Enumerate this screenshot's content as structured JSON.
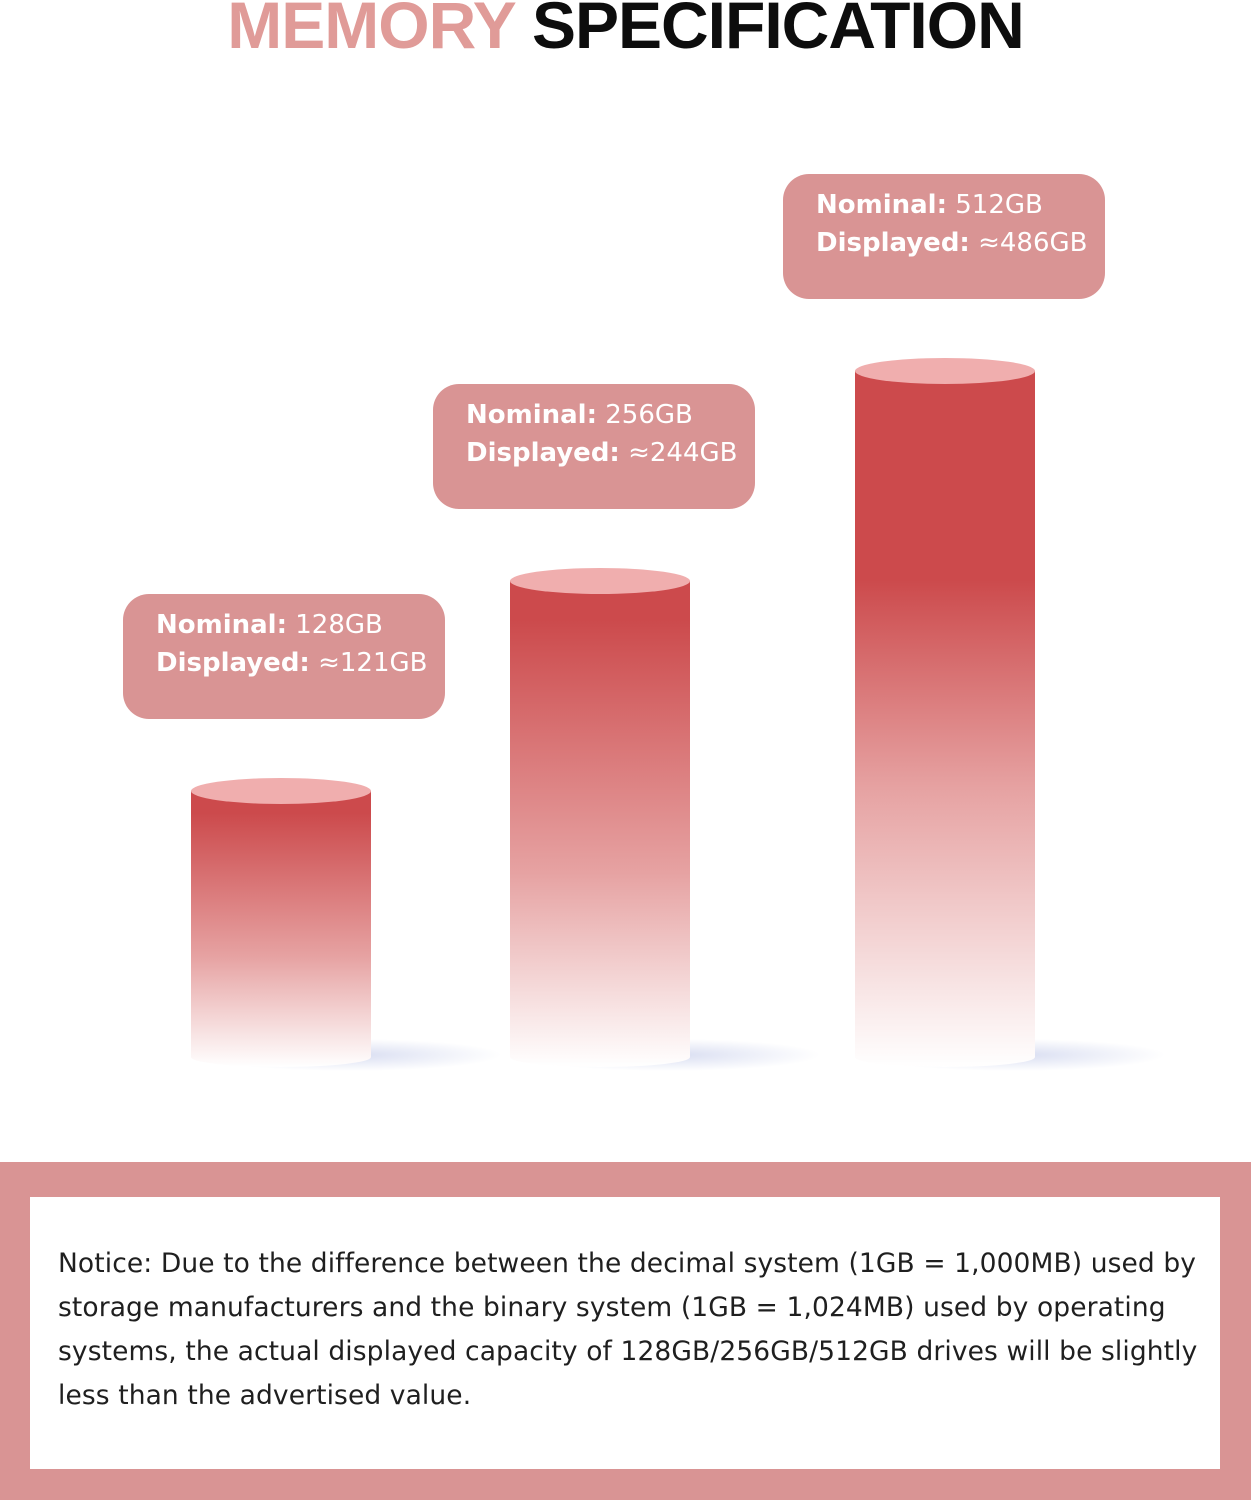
{
  "title": {
    "word1": "MEMORY",
    "word2": "SPECIFICATION"
  },
  "colors": {
    "title_accent": "#e09b98",
    "title_dark": "#0d0d0d",
    "label_box": "#d99494",
    "bar_top": "#cc4a4c",
    "bar_cap": "#f0aeae",
    "frame": "#d99494"
  },
  "chart_data": {
    "type": "bar",
    "style": "3d-cylinder",
    "categories": [
      "128GB",
      "256GB",
      "512GB"
    ],
    "series": [
      {
        "name": "Nominal",
        "values": [
          128,
          256,
          512
        ]
      },
      {
        "name": "Displayed",
        "values": [
          121,
          244,
          486
        ]
      }
    ],
    "title": "MEMORY SPECIFICATION",
    "labels": [
      {
        "nominal_label": "Nominal:",
        "nominal_value": "128GB",
        "displayed_label": "Displayed:",
        "displayed_value": "≈121GB"
      },
      {
        "nominal_label": "Nominal:",
        "nominal_value": "256GB",
        "displayed_label": "Displayed:",
        "displayed_value": "≈244GB"
      },
      {
        "nominal_label": "Nominal:",
        "nominal_value": "512GB",
        "displayed_label": "Displayed:",
        "displayed_value": "≈486GB"
      }
    ],
    "axes_visible": false,
    "grid": false
  },
  "notice": {
    "text": "Notice: Due to the difference between the decimal system (1GB = 1,000MB) used by storage manufacturers and the binary system (1GB = 1,024MB) used by operating systems, the actual displayed capacity of 128GB/256GB/512GB drives will be slightly less than the advertised value."
  }
}
